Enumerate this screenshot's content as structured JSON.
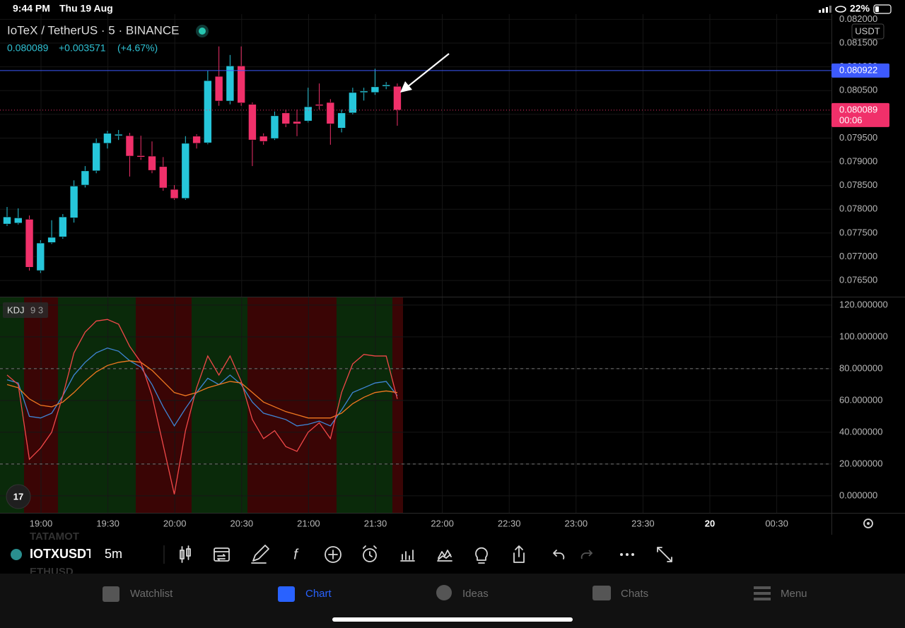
{
  "status_bar": {
    "time": "9:44 PM",
    "date": "Thu 19 Aug",
    "battery": "22%"
  },
  "header": {
    "title": "IoTeX / TetherUS · 5 · BINANCE",
    "price": "0.080089",
    "change": "+0.003571",
    "change_pct": "(+4.67%)",
    "currency": "USDT"
  },
  "chart_data": {
    "type": "candlestick",
    "open": [
      0.07769,
      0.07771,
      0.07779,
      0.07671,
      0.0773,
      0.07742,
      0.07782,
      0.07851,
      0.07881,
      0.07939,
      0.07955,
      0.07955,
      0.07913,
      0.07912,
      0.0789,
      0.07842,
      0.07823,
      0.07954,
      0.0794,
      0.0808,
      0.08028,
      0.08102,
      0.08021,
      0.07954,
      0.07949,
      0.08003,
      0.07985,
      0.07986,
      0.08021,
      0.08025,
      0.07971,
      0.08003,
      0.08046,
      0.08046,
      0.08059,
      0.08059
    ],
    "high": [
      0.07805,
      0.07802,
      0.07787,
      0.07735,
      0.07777,
      0.0779,
      0.07861,
      0.07891,
      0.07949,
      0.07965,
      0.07967,
      0.07961,
      0.07955,
      0.07943,
      0.0791,
      0.07851,
      0.07954,
      0.07958,
      0.08092,
      0.08143,
      0.08125,
      0.08143,
      0.08025,
      0.0796,
      0.08006,
      0.0801,
      0.0801,
      0.08056,
      0.08065,
      0.08032,
      0.0801,
      0.08056,
      0.08056,
      0.08096,
      0.08068,
      0.08065
    ],
    "low": [
      0.07765,
      0.07768,
      0.07671,
      0.07666,
      0.07727,
      0.07738,
      0.07772,
      0.07846,
      0.07876,
      0.07928,
      0.07946,
      0.07869,
      0.07904,
      0.07876,
      0.07839,
      0.0782,
      0.0782,
      0.07928,
      0.07937,
      0.08018,
      0.08021,
      0.08018,
      0.07891,
      0.07936,
      0.07946,
      0.07973,
      0.07954,
      0.07983,
      0.0801,
      0.07936,
      0.07962,
      0.08,
      0.08029,
      0.08041,
      0.08053,
      0.07976
    ],
    "close": [
      0.07784,
      0.07782,
      0.07678,
      0.07729,
      0.07741,
      0.07784,
      0.07849,
      0.07881,
      0.0794,
      0.0796,
      0.07958,
      0.07912,
      0.0791,
      0.07882,
      0.07845,
      0.07823,
      0.07939,
      0.07939,
      0.08071,
      0.08028,
      0.08102,
      0.08024,
      0.07946,
      0.07943,
      0.07997,
      0.0798,
      0.0798,
      0.08016,
      0.08018,
      0.0798,
      0.08003,
      0.08046,
      0.08049,
      0.08058,
      0.08062,
      0.08009
    ],
    "up_color": "#26c6da",
    "down_color": "#f0306a",
    "ylim": [
      0.07616,
      0.08211
    ],
    "yticks": [
      {
        "value": 0.082,
        "label": "0.082000"
      },
      {
        "value": 0.0815,
        "label": "0.081500"
      },
      {
        "value": 0.081,
        "label": "0.081000"
      },
      {
        "value": 0.0805,
        "label": "0.080500"
      },
      {
        "value": 0.08,
        "label": "0.080000"
      },
      {
        "value": 0.0795,
        "label": "0.079500"
      },
      {
        "value": 0.079,
        "label": "0.079000"
      },
      {
        "value": 0.0785,
        "label": "0.078500"
      },
      {
        "value": 0.078,
        "label": "0.078000"
      },
      {
        "value": 0.0775,
        "label": "0.077500"
      },
      {
        "value": 0.077,
        "label": "0.077000"
      },
      {
        "value": 0.0765,
        "label": "0.076500"
      }
    ],
    "high_line": {
      "value": 0.080922,
      "label": "0.080922",
      "color": "#3d5afe"
    },
    "last_price": {
      "value": 0.080089,
      "label": "0.080089",
      "countdown": "00:06",
      "color": "#f0306a"
    },
    "x_labels": [
      "19:00",
      "19:30",
      "20:00",
      "20:30",
      "21:00",
      "21:30",
      "22:00",
      "22:30",
      "23:00",
      "23:30",
      "20",
      "00:30"
    ],
    "grid": true
  },
  "indicator": {
    "name": "KDJ",
    "params": "9 3",
    "ylim": [
      -10.7,
      125.3
    ],
    "yticks": [
      {
        "value": 120,
        "label": "120.000000"
      },
      {
        "value": 100,
        "label": "100.000000"
      },
      {
        "value": 80,
        "label": "80.000000"
      },
      {
        "value": 60,
        "label": "60.000000"
      },
      {
        "value": 40,
        "label": "40.000000"
      },
      {
        "value": 20,
        "label": "20.000000"
      },
      {
        "value": 0,
        "label": "0.000000"
      }
    ],
    "levels": [
      80,
      20
    ],
    "series": [
      {
        "color": "#3f86d6",
        "values": [
          73,
          71,
          50,
          49,
          52,
          63,
          76,
          84,
          90,
          93,
          91,
          85,
          81,
          70,
          56,
          44,
          55,
          65,
          74,
          70,
          76,
          70,
          59,
          52,
          50,
          48,
          44,
          45,
          47,
          44,
          54,
          65,
          68,
          71,
          72,
          63
        ]
      },
      {
        "color": "#f07820",
        "values": [
          70,
          68,
          61,
          57,
          56,
          59,
          65,
          72,
          78,
          82,
          84,
          85,
          84,
          79,
          72,
          65,
          63,
          65,
          68,
          70,
          72,
          71,
          65,
          59,
          56,
          53,
          51,
          49,
          49,
          49,
          52,
          58,
          62,
          65,
          66,
          65
        ]
      },
      {
        "color": "#f04848",
        "values": [
          76,
          70,
          23,
          30,
          40,
          63,
          90,
          103,
          110,
          111,
          108,
          94,
          84,
          63,
          32,
          1,
          41,
          68,
          88,
          76,
          88,
          72,
          48,
          36,
          41,
          31,
          28,
          40,
          46,
          36,
          65,
          83,
          89,
          88,
          88,
          61
        ]
      }
    ]
  },
  "toolbar": {
    "symbol": "IOTXUSDT",
    "interval": "5m",
    "ghost_above": "TATAMOT",
    "ghost_below": "ETHUSD"
  },
  "nav": [
    "Watchlist",
    "Chart",
    "Ideas",
    "Chats",
    "Menu"
  ]
}
